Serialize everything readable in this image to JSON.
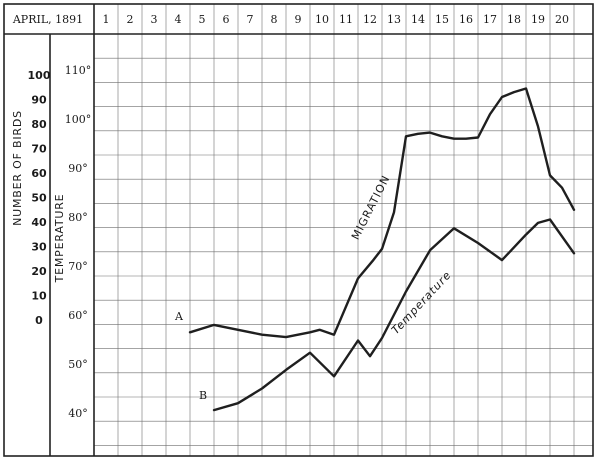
{
  "chart_data": {
    "type": "line",
    "header_label": "APRIL, 1891",
    "days": [
      "1",
      "2",
      "3",
      "4",
      "5",
      "6",
      "7",
      "8",
      "9",
      "10",
      "11",
      "12",
      "13",
      "14",
      "15",
      "16",
      "17",
      "18",
      "19",
      "20"
    ],
    "birds_axis": {
      "label": "NUMBER OF BIRDS",
      "ticks": [
        "100",
        "90",
        "80",
        "70",
        "60",
        "50",
        "40",
        "30",
        "20",
        "10",
        "0"
      ],
      "range": [
        0,
        100
      ]
    },
    "temperature_axis": {
      "label": "TEMPERATURE",
      "ticks": [
        "110°",
        "100°",
        "90°",
        "80°",
        "70°",
        "60°",
        "50°",
        "40°"
      ],
      "range": [
        40,
        110
      ]
    },
    "series": [
      {
        "name": "MIGRATION",
        "marker": "A",
        "axis": "birds",
        "x": [
          4,
          5,
          6,
          7,
          8,
          9,
          9.4,
          10,
          11,
          11.6,
          12,
          12.5,
          13,
          13.5,
          14,
          14.5,
          15,
          15.5,
          16,
          16.5,
          17,
          17.5,
          18,
          18.5,
          19,
          19.5,
          20
        ],
        "y": [
          -5,
          -2,
          -4,
          -6,
          -7,
          -5,
          -4,
          -6,
          17,
          24,
          29,
          44,
          75,
          76,
          76.5,
          75,
          74,
          74,
          74.5,
          84,
          91,
          93,
          94.5,
          79,
          59,
          54,
          45
        ]
      },
      {
        "name": "Temperature",
        "marker": "B",
        "axis": "temperature",
        "x": [
          5,
          6,
          7,
          8,
          9,
          10,
          11,
          11.5,
          12,
          13,
          14,
          15,
          16,
          17,
          18,
          18.5,
          19,
          20
        ],
        "y": [
          40.6,
          42.0,
          45.0,
          48.8,
          52.3,
          47.5,
          54.8,
          51.6,
          55.3,
          64.8,
          73.2,
          77.7,
          74.7,
          71.2,
          76.4,
          78.8,
          79.5,
          72.6
        ]
      }
    ],
    "grid": true
  }
}
